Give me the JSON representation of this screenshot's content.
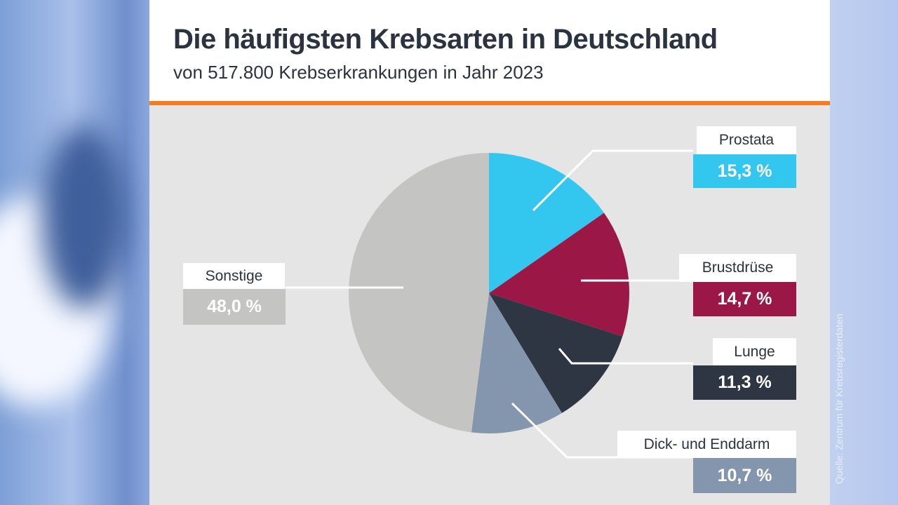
{
  "title": "Die häufigsten Krebsarten in Deutschland",
  "subtitle": "von 517.800 Krebserkrankungen in Jahr 2023",
  "source": "Quelle: Zentrum für Krebsregisterdaten",
  "accent_color": "#f47d20",
  "chart_data": {
    "type": "pie",
    "title": "Die häufigsten Krebsarten in Deutschland",
    "subtitle": "von 517.800 Krebserkrankungen in Jahr 2023",
    "unit": "%",
    "slices": [
      {
        "name": "Prostata",
        "value": 15.3,
        "label": "15,3 %",
        "color": "#33c6ef"
      },
      {
        "name": "Brustdrüse",
        "value": 14.7,
        "label": "14,7 %",
        "color": "#9b1846"
      },
      {
        "name": "Lunge",
        "value": 11.3,
        "label": "11,3 %",
        "color": "#2e3644"
      },
      {
        "name": "Dick- und Enddarm",
        "value": 10.7,
        "label": "10,7 %",
        "color": "#8396ad"
      },
      {
        "name": "Sonstige",
        "value": 48.0,
        "label": "48,0 %",
        "color": "#c4c4c3"
      }
    ]
  }
}
